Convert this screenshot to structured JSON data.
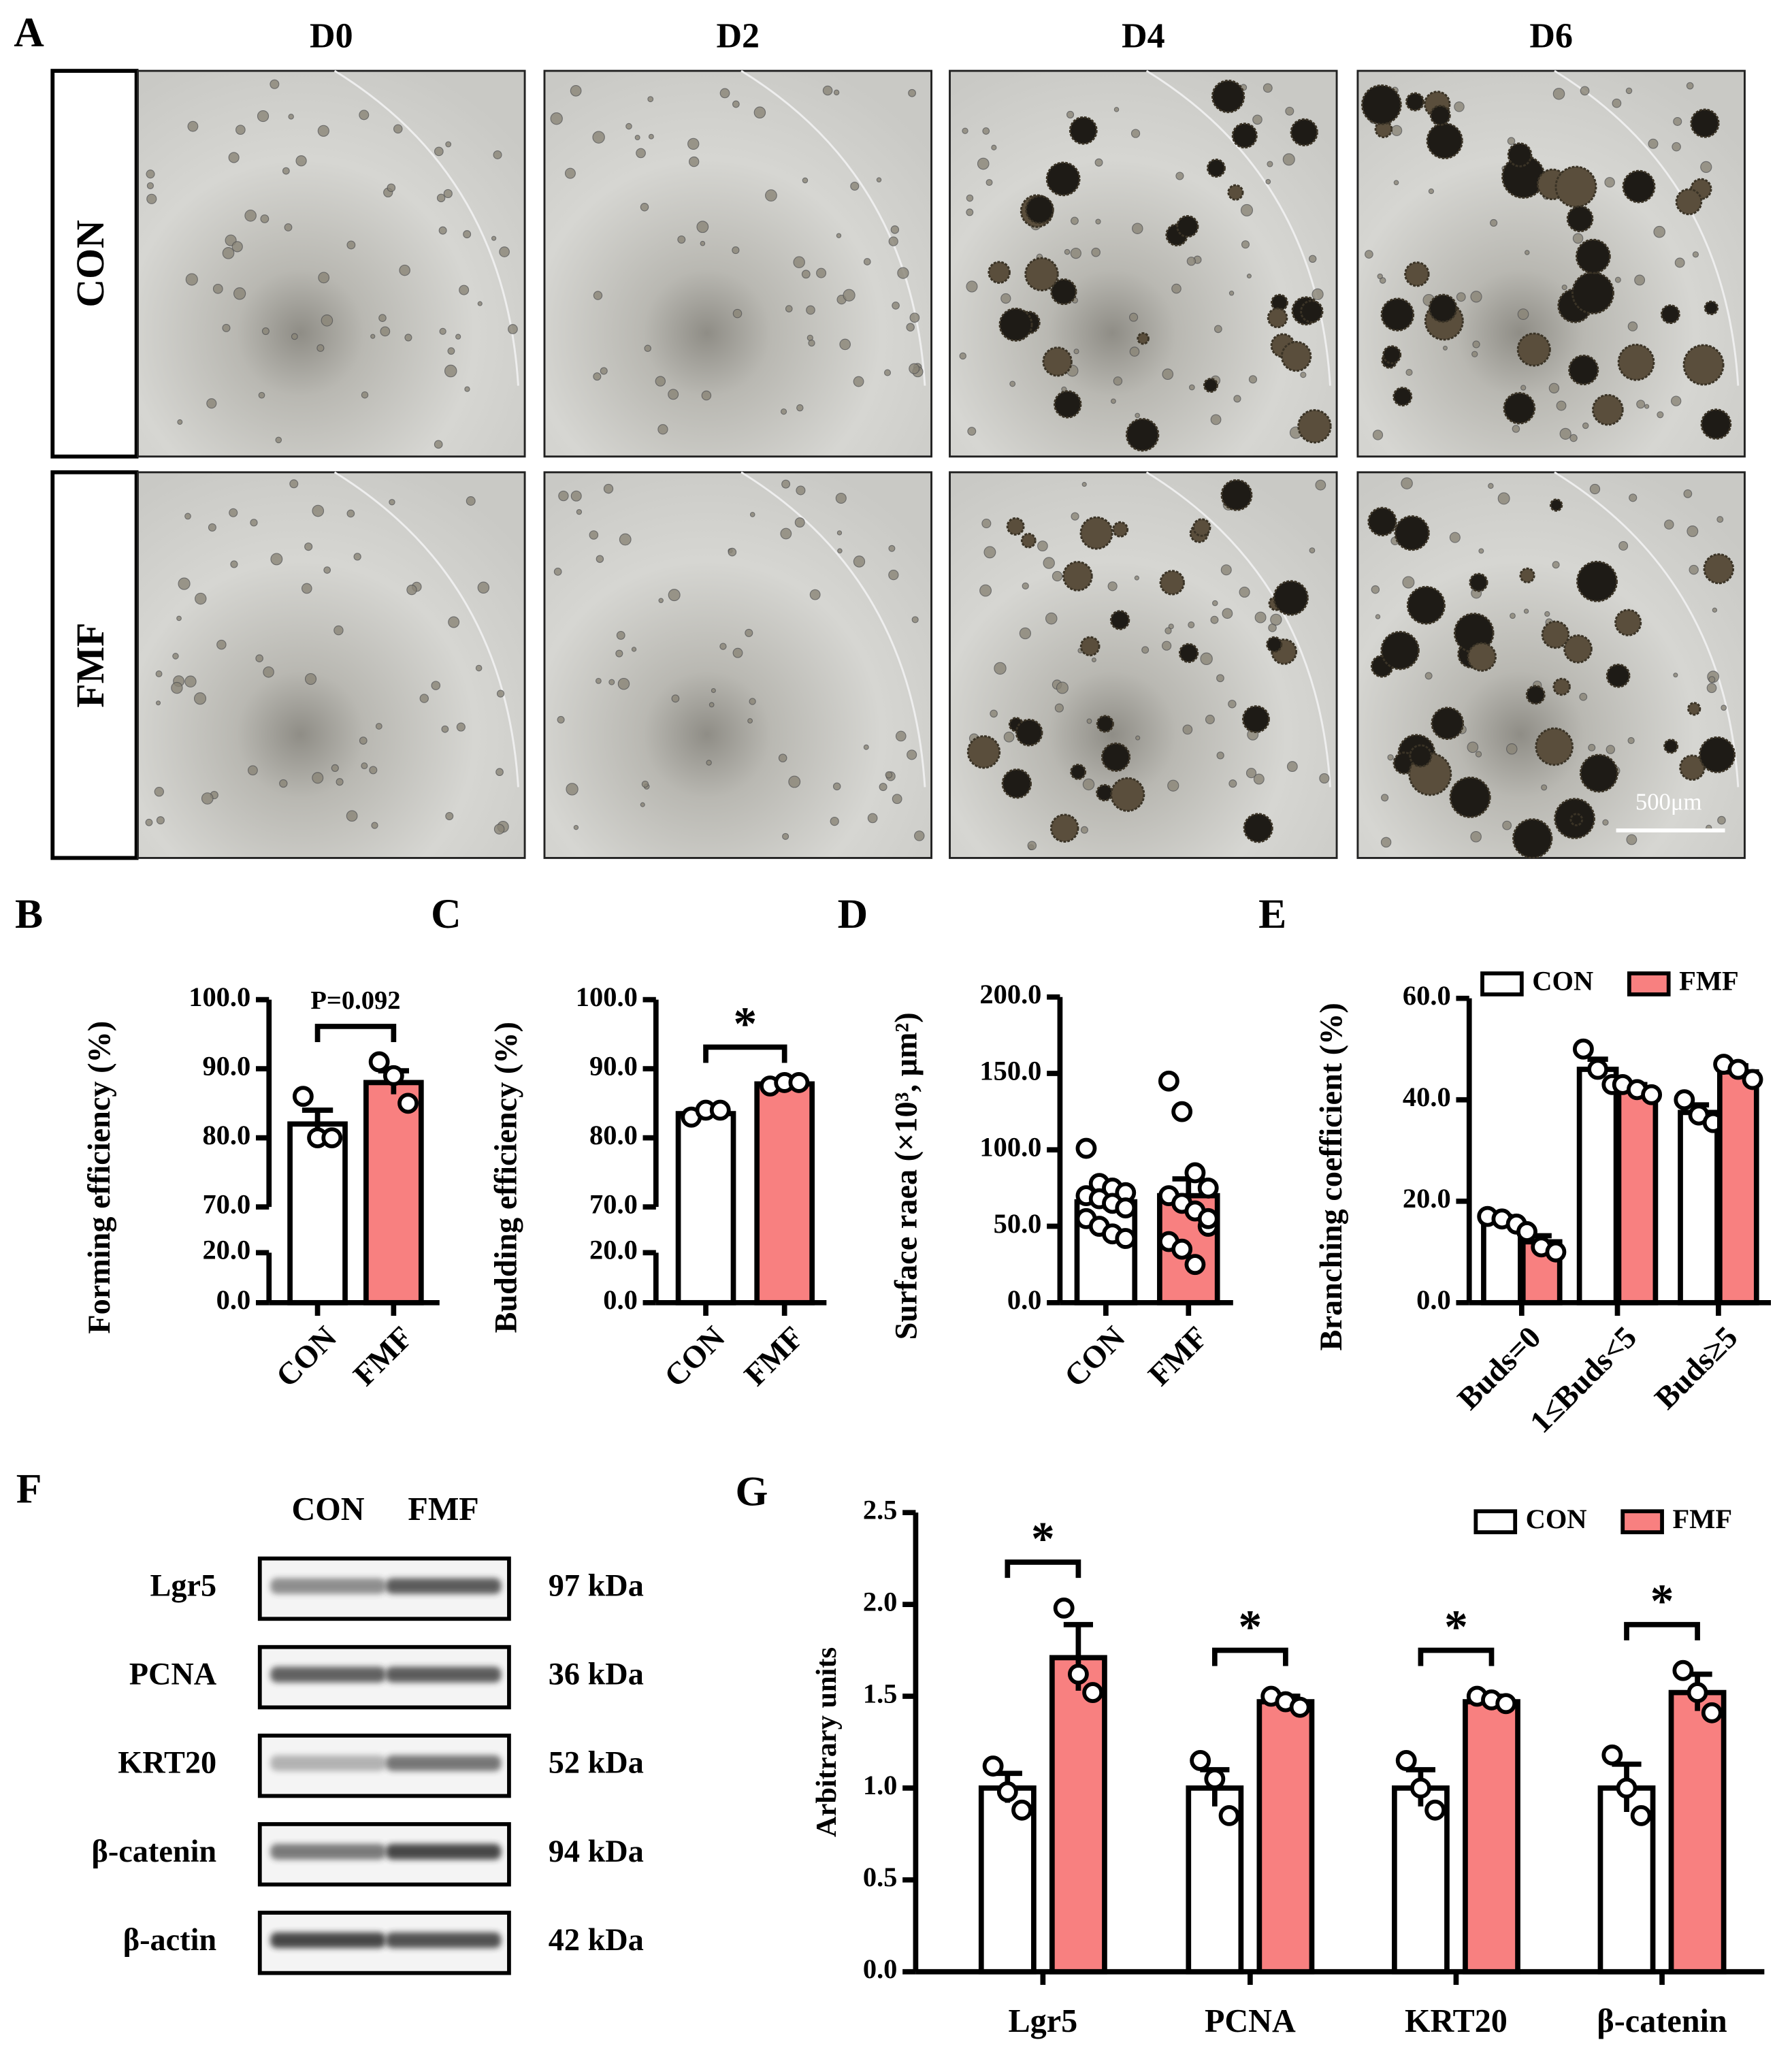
{
  "panel_a": {
    "label": "A",
    "columns": [
      "D0",
      "D2",
      "D4",
      "D6"
    ],
    "rows": [
      "CON",
      "FMF"
    ],
    "scale_bar": "500μm"
  },
  "panel_f": {
    "label": "F",
    "lanes": [
      "CON",
      "FMF"
    ],
    "proteins": [
      "Lgr5",
      "PCNA",
      "KRT20",
      "β-catenin",
      "β-actin"
    ],
    "sizes": [
      "97 kDa",
      "36 kDa",
      "52 kDa",
      "94 kDa",
      "42 kDa"
    ]
  },
  "chart_data": [
    {
      "type": "bar",
      "panel": "B",
      "ylabel": "Forming efficiency (%)",
      "categories": [
        "CON",
        "FMF"
      ],
      "values": [
        82,
        88
      ],
      "errors": [
        2,
        1.7
      ],
      "points": [
        [
          86,
          80,
          80
        ],
        [
          91,
          89,
          85
        ]
      ],
      "colors": [
        "#ffffff",
        "#f88080"
      ],
      "ylim": [
        0,
        100
      ],
      "ybreak": [
        20,
        70
      ],
      "yticks": [
        {
          "value": 0,
          "label": "0.0"
        },
        {
          "value": 20,
          "label": "20.0"
        },
        {
          "value": 70,
          "label": "70.0"
        },
        {
          "value": 80,
          "label": "80.0"
        },
        {
          "value": 90,
          "label": "90.0"
        },
        {
          "value": 100,
          "label": "100.0"
        }
      ],
      "annotation": "P=0.092"
    },
    {
      "type": "bar",
      "panel": "C",
      "ylabel": "Budding efficiency (%)",
      "categories": [
        "CON",
        "FMF"
      ],
      "values": [
        83.5,
        87.8
      ],
      "errors": [
        0.5,
        0.5
      ],
      "points": [
        [
          83,
          84,
          84
        ],
        [
          87.5,
          88,
          88
        ]
      ],
      "colors": [
        "#ffffff",
        "#f88080"
      ],
      "ylim": [
        0,
        100
      ],
      "ybreak": [
        20,
        70
      ],
      "yticks": [
        {
          "value": 0,
          "label": "0.0"
        },
        {
          "value": 20,
          "label": "20.0"
        },
        {
          "value": 70,
          "label": "70.0"
        },
        {
          "value": 80,
          "label": "80.0"
        },
        {
          "value": 90,
          "label": "90.0"
        },
        {
          "value": 100,
          "label": "100.0"
        }
      ],
      "annotation": "*"
    },
    {
      "type": "bar",
      "panel": "D",
      "ylabel": "Surface raea (×10³, μm²)",
      "categories": [
        "CON",
        "FMF"
      ],
      "values": [
        66,
        70
      ],
      "errors": [
        5,
        11
      ],
      "points": [
        [
          101,
          78,
          75,
          72,
          70,
          68,
          65,
          62,
          55,
          50,
          45,
          42
        ],
        [
          145,
          125,
          85,
          75,
          70,
          65,
          60,
          50,
          40,
          35,
          25,
          55
        ]
      ],
      "colors": [
        "#ffffff",
        "#f88080"
      ],
      "ylim": [
        0,
        200
      ],
      "yticks": [
        {
          "value": 0,
          "label": "0.0"
        },
        {
          "value": 50,
          "label": "50.0"
        },
        {
          "value": 100,
          "label": "100.0"
        },
        {
          "value": 150,
          "label": "150.0"
        },
        {
          "value": 200,
          "label": "200.0"
        }
      ]
    },
    {
      "type": "grouped-bar",
      "panel": "E",
      "ylabel": "Branching coefficient (%)",
      "categories": [
        "Buds=0",
        "1≤Buds<5",
        "Buds≥5"
      ],
      "series": [
        {
          "name": "CON",
          "color": "#ffffff",
          "values": [
            16,
            46,
            37.5
          ],
          "errors": [
            1,
            2,
            1.5
          ],
          "points": [
            [
              17,
              16.5,
              15.5
            ],
            [
              50,
              46,
              43
            ],
            [
              40,
              37,
              35.5
            ]
          ]
        },
        {
          "name": "FMF",
          "color": "#f88080",
          "values": [
            12,
            42,
            45.5
          ],
          "errors": [
            1.2,
            1,
            1.2
          ],
          "points": [
            [
              14,
              11,
              10
            ],
            [
              43,
              42,
              41
            ],
            [
              47,
              46,
              44
            ]
          ]
        }
      ],
      "ylim": [
        0,
        60
      ],
      "legend": "top-right",
      "yticks": [
        {
          "value": 0,
          "label": "0.0"
        },
        {
          "value": 20,
          "label": "20.0"
        },
        {
          "value": 40,
          "label": "40.0"
        },
        {
          "value": 60,
          "label": "60.0"
        }
      ]
    },
    {
      "type": "grouped-bar",
      "panel": "G",
      "ylabel": "Arbitrary units",
      "categories": [
        "Lgr5",
        "PCNA",
        "KRT20",
        "β-catenin"
      ],
      "series": [
        {
          "name": "CON",
          "color": "#ffffff",
          "values": [
            1,
            1,
            1,
            1
          ],
          "errors": [
            0.08,
            0.1,
            0.1,
            0.13
          ],
          "points": [
            [
              1.12,
              0.98,
              0.88
            ],
            [
              1.15,
              1.05,
              0.85
            ],
            [
              1.15,
              1,
              0.88
            ],
            [
              1.18,
              1,
              0.85
            ]
          ]
        },
        {
          "name": "FMF",
          "color": "#f88080",
          "values": [
            1.71,
            1.47,
            1.47,
            1.52
          ],
          "errors": [
            0.18,
            0.03,
            0.03,
            0.1
          ],
          "points": [
            [
              1.98,
              1.62,
              1.52
            ],
            [
              1.5,
              1.47,
              1.44
            ],
            [
              1.5,
              1.48,
              1.46
            ],
            [
              1.64,
              1.52,
              1.41
            ]
          ]
        }
      ],
      "ylim": [
        0,
        2.5
      ],
      "legend": "top-right",
      "sig_labels": [
        "*",
        "*",
        "*",
        "*"
      ],
      "yticks": [
        {
          "value": 0,
          "label": "0.0"
        },
        {
          "value": 0.5,
          "label": "0.5"
        },
        {
          "value": 1,
          "label": "1.0"
        },
        {
          "value": 1.5,
          "label": "1.5"
        },
        {
          "value": 2,
          "label": "2.0"
        },
        {
          "value": 2.5,
          "label": "2.5"
        }
      ]
    }
  ]
}
